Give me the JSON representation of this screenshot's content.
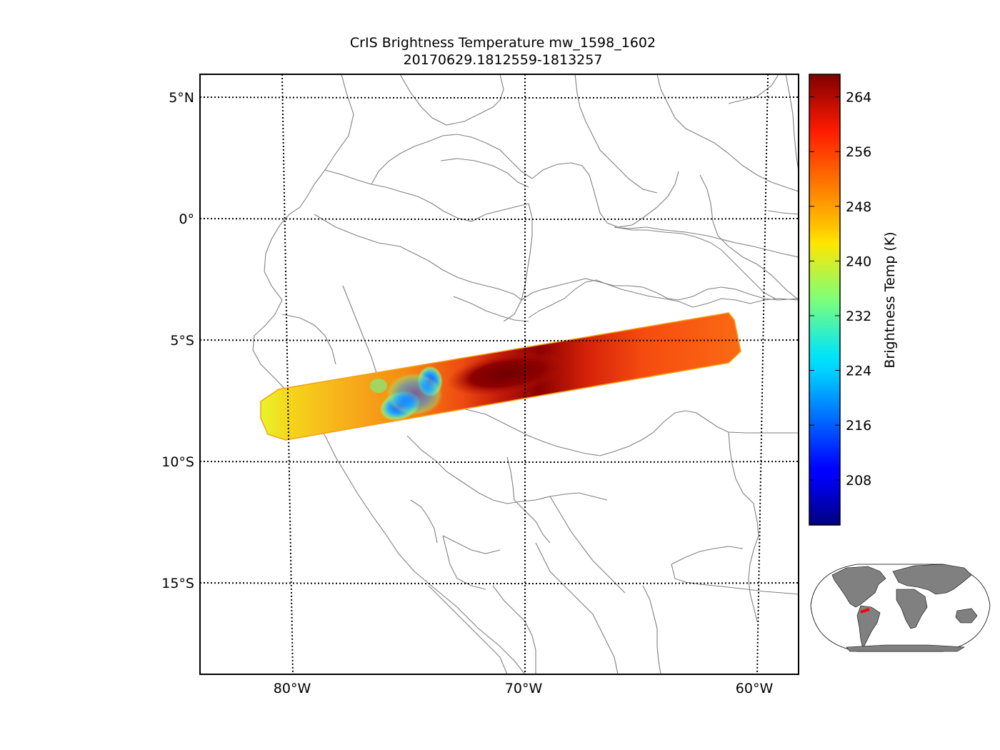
{
  "title": {
    "line1": "CrIS Brightness Temperature mw_1598_1602",
    "line2": "20170629.1812559-1813257"
  },
  "map": {
    "lon_range": [
      -84,
      -58.2
    ],
    "lat_range": [
      -18.5,
      6.0
    ],
    "lat_labels": [
      {
        "lat": 5,
        "text": "5°N"
      },
      {
        "lat": 0,
        "text": "0°"
      },
      {
        "lat": -5,
        "text": "5°S"
      },
      {
        "lat": -10,
        "text": "10°S"
      },
      {
        "lat": -15,
        "text": "15°S"
      }
    ],
    "lon_labels": [
      {
        "lon": -80,
        "text": "80°W"
      },
      {
        "lon": -70,
        "text": "70°W"
      },
      {
        "lon": -60,
        "text": "60°W"
      }
    ]
  },
  "colorbar": {
    "label": "Brightness Temp (K)",
    "range": [
      201.4,
      267.3
    ],
    "ticks": [
      208,
      216,
      224,
      232,
      240,
      248,
      256,
      264
    ],
    "colormap": "jet"
  },
  "colors": {
    "borders": "#808080",
    "swath_warm": "#8b0000",
    "swath_cold": "#1f4fff",
    "inset_land": "#808080",
    "inset_swath": "#ff0000"
  }
}
